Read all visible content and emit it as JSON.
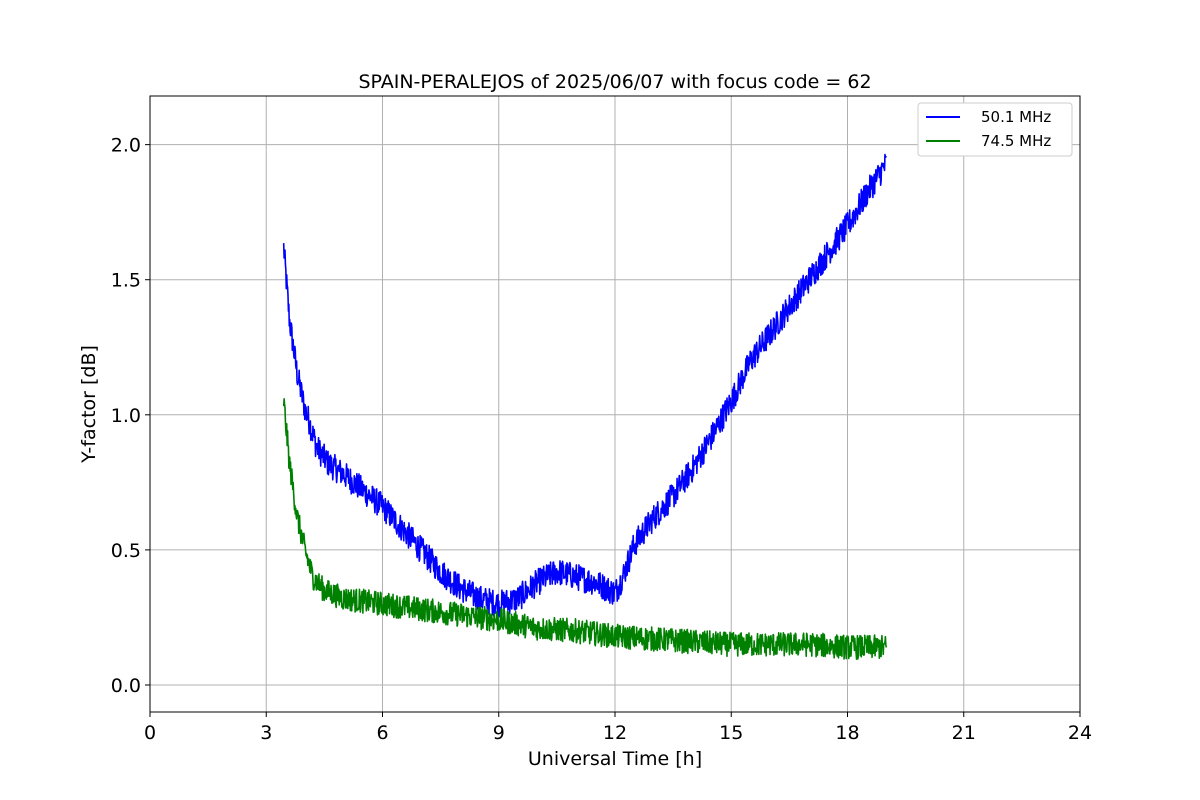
{
  "chart_data": {
    "type": "line",
    "title": "SPAIN-PERALEJOS of 2025/06/07 with focus code = 62",
    "xlabel": "Universal Time [h]",
    "ylabel": "Y-factor [dB]",
    "xlim": [
      0,
      24
    ],
    "ylim": [
      -0.1,
      2.18
    ],
    "xticks": [
      0,
      3,
      6,
      9,
      12,
      15,
      18,
      21,
      24
    ],
    "xtick_labels": [
      "0",
      "3",
      "6",
      "9",
      "12",
      "15",
      "18",
      "21",
      "24"
    ],
    "yticks": [
      0.0,
      0.5,
      1.0,
      1.5,
      2.0
    ],
    "ytick_labels": [
      "0.0",
      "0.5",
      "1.0",
      "1.5",
      "2.0"
    ],
    "grid": true,
    "legend_position": "top-right",
    "series": [
      {
        "name": "50.1 MHz",
        "color": "#0000ff",
        "noise": 0.05,
        "x": [
          3.45,
          3.6,
          3.8,
          4.0,
          4.1,
          4.3,
          4.6,
          5.0,
          5.5,
          6.0,
          6.5,
          7.0,
          7.5,
          8.0,
          8.5,
          9.0,
          9.5,
          10.0,
          10.5,
          11.0,
          11.5,
          12.0,
          12.2,
          12.5,
          13.0,
          13.5,
          14.0,
          14.5,
          15.0,
          15.5,
          16.0,
          16.5,
          17.0,
          17.5,
          18.0,
          18.5,
          19.0
        ],
        "y": [
          1.62,
          1.35,
          1.15,
          1.02,
          0.98,
          0.88,
          0.82,
          0.78,
          0.72,
          0.66,
          0.58,
          0.5,
          0.42,
          0.36,
          0.32,
          0.3,
          0.32,
          0.38,
          0.42,
          0.4,
          0.38,
          0.34,
          0.4,
          0.52,
          0.62,
          0.7,
          0.8,
          0.92,
          1.05,
          1.2,
          1.3,
          1.4,
          1.5,
          1.6,
          1.7,
          1.82,
          1.93
        ]
      },
      {
        "name": "74.5 MHz",
        "color": "#008000",
        "noise": 0.045,
        "x": [
          3.45,
          3.6,
          3.8,
          4.0,
          4.2,
          4.5,
          5.0,
          6.0,
          7.0,
          8.0,
          9.0,
          10.0,
          11.0,
          12.0,
          13.0,
          14.0,
          15.0,
          16.0,
          17.0,
          18.0,
          19.0
        ],
        "y": [
          1.05,
          0.82,
          0.62,
          0.5,
          0.4,
          0.35,
          0.32,
          0.3,
          0.28,
          0.26,
          0.24,
          0.21,
          0.2,
          0.18,
          0.17,
          0.16,
          0.15,
          0.15,
          0.15,
          0.14,
          0.14
        ]
      }
    ]
  }
}
